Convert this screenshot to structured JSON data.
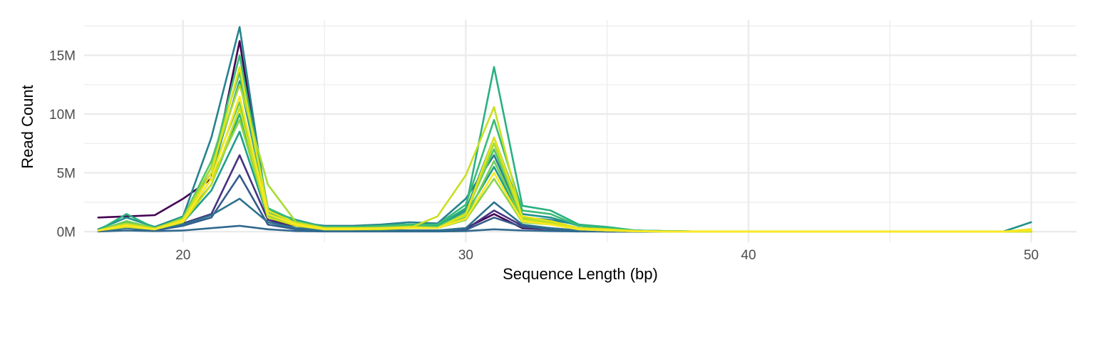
{
  "chart_data": {
    "type": "line",
    "title": "",
    "xlabel": "Sequence Length (bp)",
    "ylabel": "Read Count",
    "xlim": [
      16.5,
      51.6
    ],
    "ylim": [
      -0.9,
      18.0
    ],
    "x_ticks": [
      20,
      30,
      40,
      50
    ],
    "x_tick_labels": [
      "20",
      "30",
      "40",
      "50"
    ],
    "y_ticks": [
      0,
      5,
      10,
      15
    ],
    "y_tick_labels": [
      "0M",
      "5M",
      "10M",
      "15M"
    ],
    "y_unit": "millions of reads",
    "grid": true,
    "legend": "none",
    "color_scale": "viridis",
    "x": [
      17,
      18,
      19,
      20,
      21,
      22,
      23,
      24,
      25,
      26,
      27,
      28,
      29,
      30,
      31,
      32,
      33,
      34,
      35,
      36,
      37,
      38,
      39,
      40,
      41,
      42,
      43,
      44,
      45,
      46,
      47,
      48,
      49,
      50
    ],
    "series": [
      {
        "color": "#440154",
        "values": [
          1.2,
          1.3,
          1.4,
          2.8,
          4.5,
          16.2,
          1.0,
          0.5,
          0.1,
          0.1,
          0.1,
          0.1,
          0.1,
          0.3,
          1.5,
          0.3,
          0.2,
          0.05,
          0.02,
          0.01,
          0.01,
          0,
          0,
          0,
          0,
          0,
          0,
          0,
          0,
          0,
          0,
          0,
          0,
          0
        ]
      },
      {
        "color": "#46327e",
        "values": [
          0.1,
          0.6,
          0.2,
          0.7,
          1.5,
          6.5,
          1.0,
          0.3,
          0.1,
          0.1,
          0.1,
          0.1,
          0.1,
          0.2,
          1.8,
          0.5,
          0.3,
          0.1,
          0.05,
          0.01,
          0,
          0,
          0,
          0,
          0,
          0,
          0,
          0,
          0,
          0,
          0,
          0,
          0,
          0
        ]
      },
      {
        "color": "#365c8d",
        "values": [
          0.05,
          0.3,
          0.1,
          0.5,
          1.2,
          4.8,
          0.6,
          0.2,
          0.05,
          0.05,
          0.05,
          0.05,
          0.05,
          0.15,
          1.2,
          0.4,
          0.2,
          0.05,
          0.02,
          0,
          0,
          0,
          0,
          0,
          0,
          0,
          0,
          0,
          0,
          0,
          0,
          0,
          0,
          0
        ]
      },
      {
        "color": "#31688e",
        "values": [
          0.02,
          0.1,
          0.05,
          0.1,
          0.3,
          0.5,
          0.2,
          0.05,
          0.02,
          0.02,
          0.02,
          0.02,
          0.02,
          0.05,
          0.2,
          0.1,
          0.05,
          0.02,
          0.01,
          0,
          0,
          0,
          0,
          0,
          0,
          0,
          0,
          0,
          0,
          0,
          0,
          0,
          0,
          0
        ]
      },
      {
        "color": "#2c728e",
        "values": [
          0.1,
          0.3,
          0.2,
          0.6,
          1.4,
          2.8,
          0.8,
          0.3,
          0.1,
          0.1,
          0.1,
          0.1,
          0.1,
          0.3,
          2.5,
          0.6,
          0.3,
          0.1,
          0.05,
          0.01,
          0,
          0,
          0,
          0,
          0,
          0,
          0,
          0,
          0,
          0,
          0,
          0,
          0,
          0
        ]
      },
      {
        "color": "#26828e",
        "values": [
          0.1,
          0.5,
          0.3,
          1.3,
          8.0,
          17.4,
          1.5,
          0.8,
          0.5,
          0.5,
          0.6,
          0.8,
          0.7,
          2.8,
          6.5,
          1.2,
          1.0,
          0.6,
          0.3,
          0.1,
          0.05,
          0.02,
          0.01,
          0,
          0,
          0,
          0,
          0,
          0,
          0,
          0,
          0,
          0,
          0
        ]
      },
      {
        "color": "#21918c",
        "values": [
          0.2,
          1.2,
          0.4,
          1.3,
          5.0,
          12.8,
          1.8,
          1.0,
          0.4,
          0.4,
          0.5,
          0.6,
          0.5,
          1.8,
          8.0,
          1.5,
          1.2,
          0.5,
          0.3,
          0.1,
          0.05,
          0.02,
          0,
          0,
          0,
          0,
          0,
          0,
          0,
          0,
          0,
          0,
          0,
          0.8
        ]
      },
      {
        "color": "#1f9e89",
        "values": [
          0.1,
          0.5,
          0.2,
          0.8,
          3.5,
          8.5,
          1.2,
          0.6,
          0.3,
          0.3,
          0.3,
          0.4,
          0.3,
          1.5,
          5.5,
          1.0,
          0.8,
          0.3,
          0.2,
          0.05,
          0.02,
          0.01,
          0,
          0,
          0,
          0,
          0,
          0,
          0,
          0,
          0,
          0,
          0,
          0
        ]
      },
      {
        "color": "#2ab07f",
        "values": [
          0.1,
          1.5,
          0.3,
          1.0,
          4.0,
          10.0,
          1.5,
          0.8,
          0.4,
          0.4,
          0.5,
          0.6,
          0.5,
          2.0,
          14.0,
          2.2,
          1.8,
          0.6,
          0.4,
          0.1,
          0.05,
          0.02,
          0,
          0,
          0,
          0,
          0,
          0,
          0,
          0,
          0,
          0,
          0,
          0
        ]
      },
      {
        "color": "#3bbb75",
        "values": [
          0.1,
          0.8,
          0.3,
          1.0,
          5.5,
          15.0,
          2.0,
          0.9,
          0.4,
          0.4,
          0.5,
          0.6,
          0.6,
          2.3,
          9.5,
          1.8,
          1.5,
          0.5,
          0.3,
          0.1,
          0.05,
          0.02,
          0,
          0,
          0,
          0,
          0,
          0,
          0,
          0,
          0,
          0,
          0,
          0
        ]
      },
      {
        "color": "#52c569",
        "values": [
          0.1,
          0.6,
          0.2,
          1.2,
          6.0,
          13.5,
          1.6,
          0.7,
          0.3,
          0.3,
          0.4,
          0.5,
          0.4,
          1.6,
          7.0,
          1.2,
          0.9,
          0.3,
          0.2,
          0.05,
          0.02,
          0,
          0,
          0,
          0,
          0,
          0,
          0,
          0,
          0,
          0,
          0,
          0,
          0
        ]
      },
      {
        "color": "#6ece58",
        "values": [
          0.1,
          0.9,
          0.3,
          1.0,
          5.0,
          11.0,
          1.4,
          0.6,
          0.3,
          0.3,
          0.3,
          0.4,
          0.3,
          1.2,
          6.0,
          1.0,
          0.7,
          0.3,
          0.2,
          0.05,
          0.02,
          0,
          0,
          0,
          0,
          0,
          0,
          0,
          0,
          0,
          0,
          0,
          0,
          0
        ]
      },
      {
        "color": "#89d548",
        "values": [
          0.1,
          0.5,
          0.2,
          0.9,
          4.5,
          9.5,
          1.3,
          0.6,
          0.2,
          0.2,
          0.3,
          0.3,
          0.3,
          1.0,
          4.5,
          0.8,
          0.6,
          0.2,
          0.1,
          0.03,
          0.01,
          0,
          0,
          0,
          0,
          0,
          0,
          0,
          0,
          0,
          0,
          0,
          0,
          0
        ]
      },
      {
        "color": "#a8db34",
        "values": [
          0.1,
          0.7,
          0.3,
          1.1,
          5.5,
          12.5,
          4.0,
          0.8,
          0.3,
          0.3,
          0.3,
          0.4,
          0.3,
          1.4,
          7.5,
          1.1,
          0.8,
          0.3,
          0.2,
          0.05,
          0.02,
          0,
          0,
          0,
          0,
          0,
          0,
          0,
          0,
          0,
          0,
          0,
          0,
          0
        ]
      },
      {
        "color": "#c8e020",
        "values": [
          0.1,
          0.4,
          0.2,
          0.8,
          4.0,
          10.5,
          1.2,
          0.5,
          0.2,
          0.2,
          0.2,
          0.3,
          1.3,
          4.8,
          10.6,
          1.0,
          0.7,
          0.2,
          0.1,
          0.03,
          0.01,
          0,
          0,
          0,
          0,
          0,
          0,
          0,
          0,
          0,
          0,
          0,
          0,
          0
        ]
      },
      {
        "color": "#e2e418",
        "values": [
          0.1,
          0.6,
          0.2,
          1.0,
          5.0,
          14.0,
          1.8,
          0.7,
          0.3,
          0.3,
          0.3,
          0.4,
          0.3,
          1.5,
          8.0,
          1.3,
          0.9,
          0.3,
          0.2,
          0.05,
          0.02,
          0,
          0,
          0,
          0,
          0,
          0,
          0,
          0,
          0,
          0,
          0,
          0,
          0.2
        ]
      },
      {
        "color": "#fde725",
        "values": [
          0.1,
          0.5,
          0.2,
          0.9,
          4.5,
          11.5,
          1.5,
          0.6,
          0.2,
          0.2,
          0.3,
          0.3,
          0.3,
          1.1,
          5.0,
          0.9,
          0.6,
          0.2,
          0.1,
          0.03,
          0.01,
          0,
          0,
          0,
          0,
          0,
          0,
          0,
          0,
          0,
          0,
          0,
          0,
          0.1
        ]
      }
    ]
  }
}
